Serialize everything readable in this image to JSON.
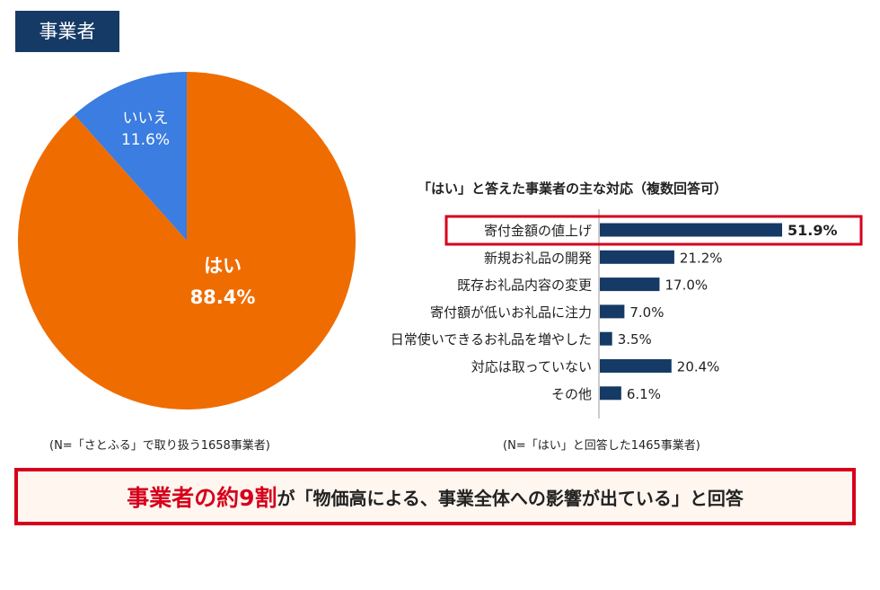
{
  "tag": "事業者",
  "pie_note": "(N=「さとふる」で取り扱う1658事業者)",
  "bar_title": "「はい」と答えた事業者の主な対応（複数回答可）",
  "bar_note": "(N=「はい」と回答した1465事業者)",
  "banner": {
    "highlight": "事業者の約9割",
    "rest": "が「物価高による、事業全体への影響が出ている」と回答"
  },
  "colors": {
    "tag_bg": "#153a66",
    "pie_yes": "#ef6c00",
    "pie_no": "#3b7de0",
    "bar": "#153a66",
    "accent_red": "#d6001c"
  },
  "chart_data": [
    {
      "type": "pie",
      "slices": [
        {
          "label": "はい",
          "value": 88.4,
          "value_label": "88.4%",
          "color": "#ef6c00"
        },
        {
          "label": "いいえ",
          "value": 11.6,
          "value_label": "11.6%",
          "color": "#3b7de0"
        }
      ]
    },
    {
      "type": "bar",
      "orientation": "horizontal",
      "title": "「はい」と答えた事業者の主な対応（複数回答可）",
      "categories": [
        "寄付金額の値上げ",
        "新規お礼品の開発",
        "既存お礼品内容の変更",
        "寄付額が低いお礼品に注力",
        "日常使いできるお礼品を増やした",
        "対応は取っていない",
        "その他"
      ],
      "values": [
        51.9,
        21.2,
        17.0,
        7.0,
        3.5,
        20.4,
        6.1
      ],
      "value_labels": [
        "51.9%",
        "21.2%",
        "17.0%",
        "7.0%",
        "3.5%",
        "20.4%",
        "6.1%"
      ],
      "highlighted_category": "寄付金額の値上げ",
      "xlim": [
        0,
        51.9
      ]
    }
  ]
}
